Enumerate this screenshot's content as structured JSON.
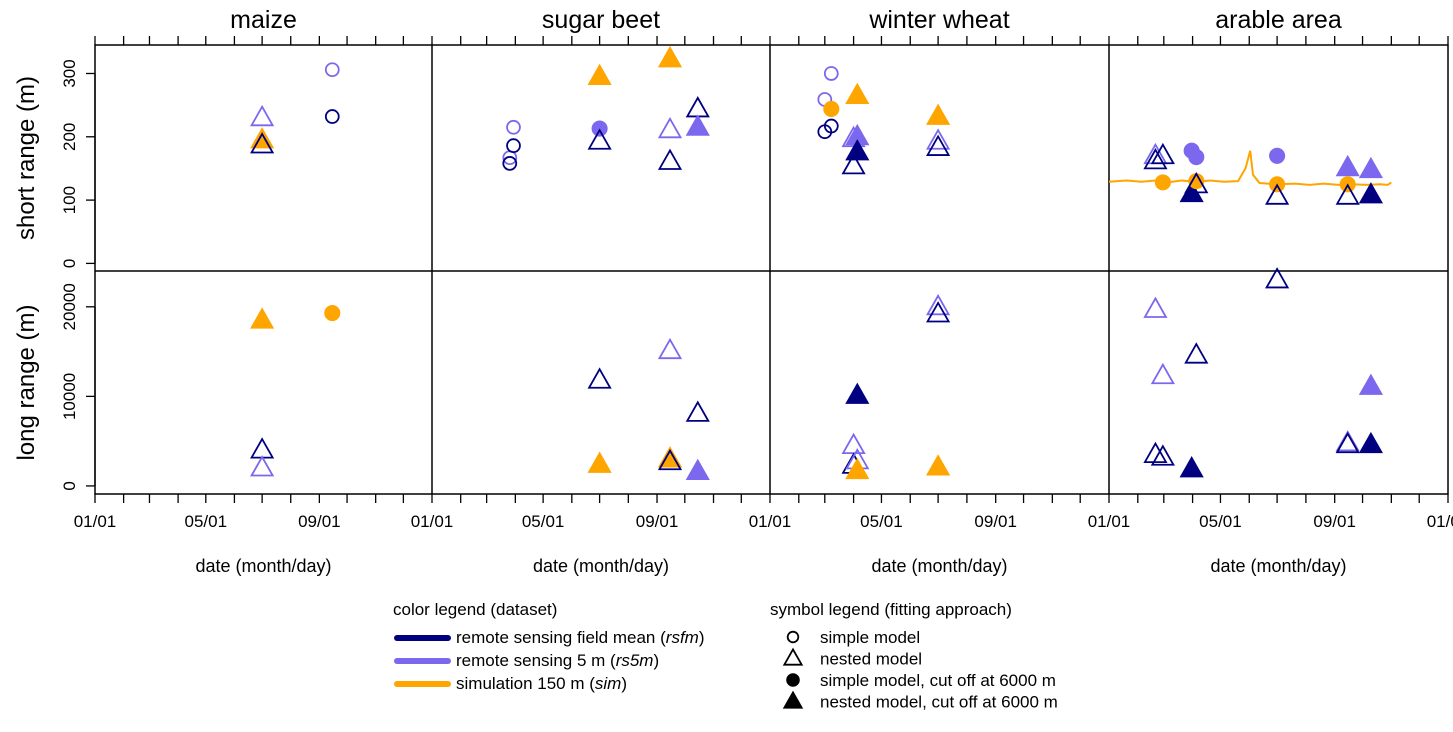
{
  "chart_data": {
    "type": "scatter",
    "layout": "faceted 2 rows x 4 columns",
    "panels": [
      "maize",
      "sugar beet",
      "winter wheat",
      "arable area"
    ],
    "rows": [
      {
        "id": "short",
        "ylabel": "short range (m)",
        "ylim": [
          -12,
          345
        ],
        "yticks": [
          0,
          100,
          200,
          300
        ]
      },
      {
        "id": "long",
        "ylabel": "long range (m)",
        "ylim": [
          -900,
          24000
        ],
        "yticks": [
          0,
          10000,
          20000
        ]
      }
    ],
    "xlabel": "date (month/day)",
    "xlim": [
      "01/01",
      "12/31"
    ],
    "xtick_labels": [
      "01/01",
      "05/01",
      "09/01"
    ],
    "extra_x_label": "01/01",
    "colors": {
      "rsfm": "#000080",
      "rs5m": "#7B68EE",
      "sim": "#FFA500"
    },
    "series": [
      {
        "panel": "maize",
        "row": "short",
        "points": [
          {
            "date": "07/01",
            "y": 230,
            "dataset": "rs5m",
            "approach": "nested"
          },
          {
            "date": "07/01",
            "y": 195,
            "dataset": "sim",
            "approach": "nested_cut"
          },
          {
            "date": "07/01",
            "y": 187,
            "dataset": "rsfm",
            "approach": "nested"
          },
          {
            "date": "09/15",
            "y": 306,
            "dataset": "rs5m",
            "approach": "simple"
          },
          {
            "date": "09/15",
            "y": 232,
            "dataset": "rsfm",
            "approach": "simple"
          }
        ]
      },
      {
        "panel": "maize",
        "row": "long",
        "points": [
          {
            "date": "07/01",
            "y": 18500,
            "dataset": "sim",
            "approach": "nested_cut"
          },
          {
            "date": "07/01",
            "y": 4000,
            "dataset": "rsfm",
            "approach": "nested"
          },
          {
            "date": "07/01",
            "y": 2000,
            "dataset": "rs5m",
            "approach": "nested"
          },
          {
            "date": "09/15",
            "y": 19300,
            "dataset": "sim",
            "approach": "simple_cut"
          }
        ]
      },
      {
        "panel": "sugar beet",
        "row": "short",
        "points": [
          {
            "date": "03/26",
            "y": 167,
            "dataset": "rs5m",
            "approach": "simple"
          },
          {
            "date": "03/26",
            "y": 158,
            "dataset": "rsfm",
            "approach": "simple"
          },
          {
            "date": "03/30",
            "y": 215,
            "dataset": "rs5m",
            "approach": "simple"
          },
          {
            "date": "03/30",
            "y": 186,
            "dataset": "rsfm",
            "approach": "simple"
          },
          {
            "date": "07/01",
            "y": 295,
            "dataset": "sim",
            "approach": "nested_cut"
          },
          {
            "date": "07/01",
            "y": 213,
            "dataset": "rs5m",
            "approach": "simple_cut"
          },
          {
            "date": "07/01",
            "y": 193,
            "dataset": "rsfm",
            "approach": "nested"
          },
          {
            "date": "09/15",
            "y": 323,
            "dataset": "sim",
            "approach": "nested_cut"
          },
          {
            "date": "09/15",
            "y": 211,
            "dataset": "rs5m",
            "approach": "nested"
          },
          {
            "date": "09/15",
            "y": 161,
            "dataset": "rsfm",
            "approach": "nested"
          },
          {
            "date": "10/15",
            "y": 244,
            "dataset": "rsfm",
            "approach": "nested"
          },
          {
            "date": "10/15",
            "y": 215,
            "dataset": "rs5m",
            "approach": "nested_cut"
          }
        ]
      },
      {
        "panel": "sugar beet",
        "row": "long",
        "points": [
          {
            "date": "07/01",
            "y": 11800,
            "dataset": "rsfm",
            "approach": "nested"
          },
          {
            "date": "07/01",
            "y": 2400,
            "dataset": "sim",
            "approach": "nested_cut"
          },
          {
            "date": "09/15",
            "y": 15100,
            "dataset": "rs5m",
            "approach": "nested"
          },
          {
            "date": "09/15",
            "y": 3000,
            "dataset": "sim",
            "approach": "nested_cut"
          },
          {
            "date": "09/15",
            "y": 2700,
            "dataset": "rsfm",
            "approach": "nested"
          },
          {
            "date": "10/15",
            "y": 8100,
            "dataset": "rsfm",
            "approach": "nested"
          },
          {
            "date": "10/15",
            "y": 1600,
            "dataset": "rs5m",
            "approach": "nested_cut"
          }
        ]
      },
      {
        "panel": "winter wheat",
        "row": "short",
        "points": [
          {
            "date": "03/01",
            "y": 259,
            "dataset": "rs5m",
            "approach": "simple"
          },
          {
            "date": "03/01",
            "y": 208,
            "dataset": "rsfm",
            "approach": "simple"
          },
          {
            "date": "03/08",
            "y": 300,
            "dataset": "rs5m",
            "approach": "simple"
          },
          {
            "date": "03/08",
            "y": 244,
            "dataset": "sim",
            "approach": "simple_cut"
          },
          {
            "date": "03/08",
            "y": 217,
            "dataset": "rsfm",
            "approach": "simple"
          },
          {
            "date": "04/01",
            "y": 197,
            "dataset": "rs5m",
            "approach": "nested"
          },
          {
            "date": "04/01",
            "y": 154,
            "dataset": "rsfm",
            "approach": "nested"
          },
          {
            "date": "04/05",
            "y": 265,
            "dataset": "sim",
            "approach": "nested_cut"
          },
          {
            "date": "04/05",
            "y": 200,
            "dataset": "rs5m",
            "approach": "nested_cut"
          },
          {
            "date": "04/05",
            "y": 176,
            "dataset": "rsfm",
            "approach": "nested_cut"
          },
          {
            "date": "07/01",
            "y": 232,
            "dataset": "sim",
            "approach": "nested_cut"
          },
          {
            "date": "07/01",
            "y": 193,
            "dataset": "rs5m",
            "approach": "nested"
          },
          {
            "date": "07/01",
            "y": 183,
            "dataset": "rsfm",
            "approach": "nested"
          }
        ]
      },
      {
        "panel": "winter wheat",
        "row": "long",
        "points": [
          {
            "date": "04/01",
            "y": 4500,
            "dataset": "rs5m",
            "approach": "nested"
          },
          {
            "date": "04/01",
            "y": 2300,
            "dataset": "rsfm",
            "approach": "nested"
          },
          {
            "date": "04/05",
            "y": 10100,
            "dataset": "rsfm",
            "approach": "nested_cut"
          },
          {
            "date": "04/05",
            "y": 2800,
            "dataset": "rs5m",
            "approach": "nested"
          },
          {
            "date": "04/05",
            "y": 1700,
            "dataset": "sim",
            "approach": "nested_cut"
          },
          {
            "date": "07/01",
            "y": 20000,
            "dataset": "rs5m",
            "approach": "nested"
          },
          {
            "date": "07/01",
            "y": 19200,
            "dataset": "rsfm",
            "approach": "nested"
          },
          {
            "date": "07/01",
            "y": 2100,
            "dataset": "sim",
            "approach": "nested_cut"
          }
        ]
      },
      {
        "panel": "arable area",
        "row": "short",
        "points": [
          {
            "date": "02/20",
            "y": 170,
            "dataset": "rs5m",
            "approach": "nested"
          },
          {
            "date": "02/20",
            "y": 162,
            "dataset": "rsfm",
            "approach": "nested"
          },
          {
            "date": "02/28",
            "y": 170,
            "dataset": "rsfm",
            "approach": "nested"
          },
          {
            "date": "02/28",
            "y": 128,
            "dataset": "sim",
            "approach": "simple_cut"
          },
          {
            "date": "03/31",
            "y": 178,
            "dataset": "rs5m",
            "approach": "simple_cut"
          },
          {
            "date": "03/31",
            "y": 110,
            "dataset": "rsfm",
            "approach": "nested_cut"
          },
          {
            "date": "04/05",
            "y": 168,
            "dataset": "rs5m",
            "approach": "simple_cut"
          },
          {
            "date": "04/05",
            "y": 130,
            "dataset": "sim",
            "approach": "simple_cut"
          },
          {
            "date": "04/05",
            "y": 124,
            "dataset": "rsfm",
            "approach": "nested"
          },
          {
            "date": "07/01",
            "y": 170,
            "dataset": "rs5m",
            "approach": "simple_cut"
          },
          {
            "date": "07/01",
            "y": 125,
            "dataset": "sim",
            "approach": "simple_cut"
          },
          {
            "date": "07/01",
            "y": 106,
            "dataset": "rsfm",
            "approach": "nested"
          },
          {
            "date": "09/15",
            "y": 151,
            "dataset": "rs5m",
            "approach": "nested_cut"
          },
          {
            "date": "09/15",
            "y": 125,
            "dataset": "sim",
            "approach": "simple_cut"
          },
          {
            "date": "09/15",
            "y": 106,
            "dataset": "rsfm",
            "approach": "nested"
          },
          {
            "date": "10/10",
            "y": 148,
            "dataset": "rs5m",
            "approach": "nested_cut"
          },
          {
            "date": "10/10",
            "y": 108,
            "dataset": "rsfm",
            "approach": "nested_cut"
          }
        ]
      },
      {
        "panel": "arable area",
        "row": "long",
        "points": [
          {
            "date": "02/20",
            "y": 19700,
            "dataset": "rs5m",
            "approach": "nested"
          },
          {
            "date": "02/20",
            "y": 3500,
            "dataset": "rsfm",
            "approach": "nested"
          },
          {
            "date": "02/28",
            "y": 12300,
            "dataset": "rs5m",
            "approach": "nested"
          },
          {
            "date": "02/28",
            "y": 3200,
            "dataset": "rsfm",
            "approach": "nested"
          },
          {
            "date": "03/31",
            "y": 1900,
            "dataset": "rsfm",
            "approach": "nested_cut"
          },
          {
            "date": "04/05",
            "y": 14600,
            "dataset": "rsfm",
            "approach": "nested"
          },
          {
            "date": "07/01",
            "y": 23000,
            "dataset": "rsfm",
            "approach": "nested"
          },
          {
            "date": "09/15",
            "y": 4800,
            "dataset": "rs5m",
            "approach": "nested"
          },
          {
            "date": "09/15",
            "y": 4600,
            "dataset": "rsfm",
            "approach": "nested"
          },
          {
            "date": "10/10",
            "y": 11100,
            "dataset": "rs5m",
            "approach": "nested_cut"
          },
          {
            "date": "10/10",
            "y": 4600,
            "dataset": "rsfm",
            "approach": "nested_cut"
          }
        ]
      }
    ],
    "lines": [
      {
        "panel": "arable area",
        "row": "short",
        "dataset": "sim",
        "points": [
          [
            "01/01",
            129
          ],
          [
            "01/20",
            131
          ],
          [
            "02/05",
            129
          ],
          [
            "02/20",
            131
          ],
          [
            "03/05",
            128
          ],
          [
            "03/20",
            131
          ],
          [
            "04/05",
            129
          ],
          [
            "04/20",
            131
          ],
          [
            "05/05",
            129
          ],
          [
            "05/20",
            130
          ],
          [
            "05/28",
            150
          ],
          [
            "06/02",
            178
          ],
          [
            "06/05",
            140
          ],
          [
            "06/12",
            127
          ],
          [
            "07/01",
            125
          ],
          [
            "07/20",
            126
          ],
          [
            "08/05",
            124
          ],
          [
            "08/20",
            126
          ],
          [
            "09/05",
            124
          ],
          [
            "09/20",
            125
          ],
          [
            "10/05",
            124
          ],
          [
            "10/20",
            125
          ],
          [
            "10/28",
            124
          ],
          [
            "11/01",
            128
          ]
        ]
      }
    ],
    "legends": {
      "color": {
        "title": "color legend (dataset)",
        "entries": [
          {
            "dataset": "rsfm",
            "text": "remote sensing field mean (",
            "abbr": "rsfm",
            "close": ")"
          },
          {
            "dataset": "rs5m",
            "text": "remote sensing 5 m (",
            "abbr": "rs5m",
            "close": ")"
          },
          {
            "dataset": "sim",
            "text": "simulation 150 m (",
            "abbr": "sim",
            "close": ")"
          }
        ]
      },
      "symbol": {
        "title": "symbol legend (fitting approach)",
        "entries": [
          {
            "approach": "simple",
            "label": "simple model"
          },
          {
            "approach": "nested",
            "label": "nested model"
          },
          {
            "approach": "simple_cut",
            "label": "simple model, cut off at 6000 m"
          },
          {
            "approach": "nested_cut",
            "label": "nested model, cut off at 6000 m"
          }
        ]
      }
    }
  }
}
